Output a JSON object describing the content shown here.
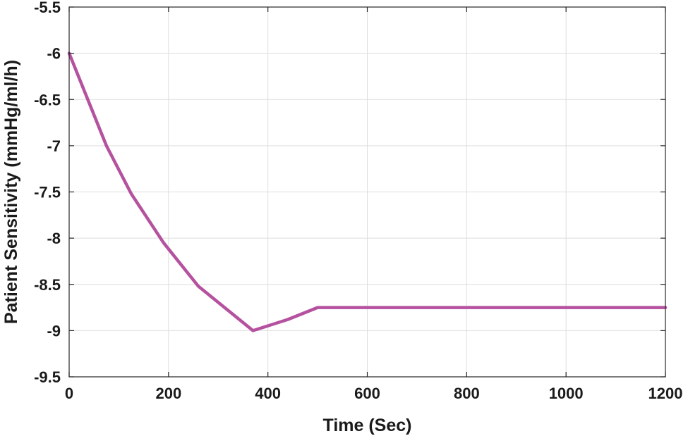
{
  "chart_data": {
    "type": "line",
    "title": "",
    "xlabel": "Time (Sec)",
    "ylabel": "Patient Sensitivity (mmHg/ml/h)",
    "xlim": [
      0,
      1200
    ],
    "ylim": [
      -9.5,
      -5.5
    ],
    "xticks": [
      0,
      200,
      400,
      600,
      800,
      1000,
      1200
    ],
    "yticks": [
      -5.5,
      -6,
      -6.5,
      -7,
      -7.5,
      -8,
      -8.5,
      -9,
      -9.5
    ],
    "xtick_labels": [
      "0",
      "200",
      "400",
      "600",
      "800",
      "1000",
      "1200"
    ],
    "ytick_labels": [
      "-5.5",
      "-6",
      "-6.5",
      "-7",
      "-7.5",
      "-8",
      "-8.5",
      "-9",
      "-9.5"
    ],
    "grid": true,
    "legend": "none",
    "series": [
      {
        "color": "#b5529f",
        "x": [
          0,
          75,
          125,
          190,
          260,
          370,
          440,
          500,
          1200
        ],
        "y": [
          -6.0,
          -7.0,
          -7.52,
          -8.05,
          -8.52,
          -9.0,
          -8.88,
          -8.75,
          -8.75
        ]
      }
    ]
  }
}
